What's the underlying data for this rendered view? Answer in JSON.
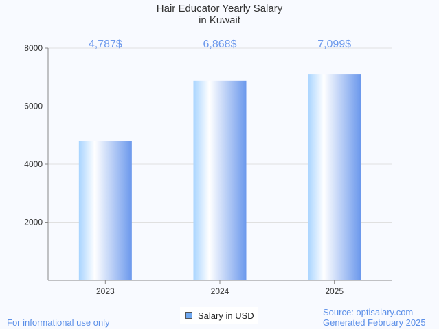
{
  "chart_data": {
    "type": "bar",
    "title_line1": "Hair Educator Yearly Salary",
    "title_line2": "in Kuwait",
    "categories": [
      "2023",
      "2024",
      "2025"
    ],
    "values": [
      4787,
      6868,
      7099
    ],
    "data_labels": [
      "4,787$",
      "6,868$",
      "7,099$"
    ],
    "yticks": [
      2000,
      4000,
      6000,
      8000
    ],
    "ylim": [
      0,
      8000
    ],
    "legend": "Salary in USD",
    "legend_position": "bottom-center",
    "colors": {
      "grad_left": "#a8d4ff",
      "grad_mid": "#ffffff",
      "grad_right": "#6b98ec",
      "label": "#6b98ec"
    }
  },
  "footer": {
    "left": "For informational use only",
    "source": "Source: optisalary.com",
    "generated": "Generated February 2025"
  }
}
